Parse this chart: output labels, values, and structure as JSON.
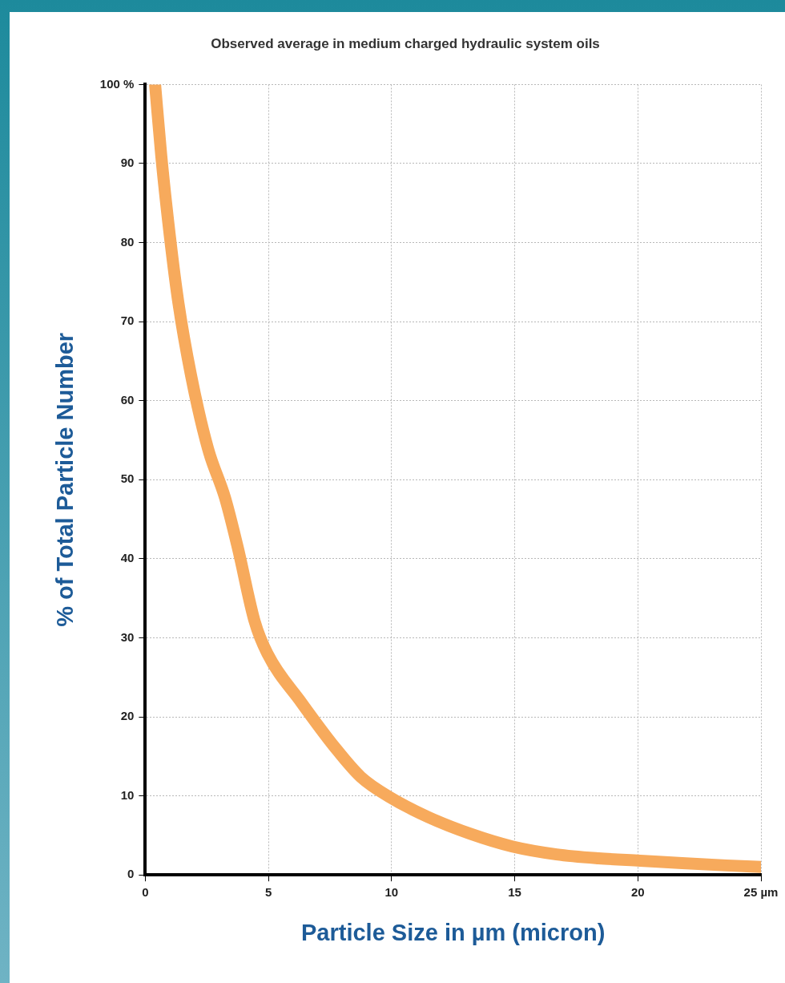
{
  "chart_data": {
    "type": "line",
    "title": "Observed average in medium charged hydraulic system oils",
    "xlabel": "Particle Size in µm (micron)",
    "ylabel": "% of Total Particle Number",
    "series": [
      {
        "color": "#f7aa5c",
        "x": [
          0.4,
          0.65,
          1.0,
          1.34,
          1.86,
          2.55,
          3.24,
          3.75,
          4.44,
          4.96,
          6.34,
          7.71,
          8.75,
          9.95,
          11.5,
          13.2,
          14.9,
          16.7,
          18.4,
          20.1,
          21.8,
          23.6,
          25
        ],
        "values": [
          100,
          91,
          80.8,
          72.5,
          63.2,
          53.9,
          47.7,
          41.5,
          32.1,
          28,
          21.8,
          16.1,
          12.4,
          9.8,
          7.3,
          5.2,
          3.6,
          2.6,
          2.1,
          1.8,
          1.5,
          1.2,
          1.0
        ]
      }
    ],
    "xlim": [
      0,
      25
    ],
    "xticks": [
      0,
      5,
      10,
      15,
      20,
      {
        "value": 25,
        "label": "25 µm"
      }
    ],
    "ylim": [
      0,
      100
    ],
    "yticks": [
      0,
      10,
      20,
      30,
      40,
      50,
      60,
      70,
      80,
      90,
      {
        "value": 100,
        "label": "100 %"
      }
    ],
    "grid": true,
    "legend": false,
    "marker": "none",
    "line_style": "solid"
  }
}
